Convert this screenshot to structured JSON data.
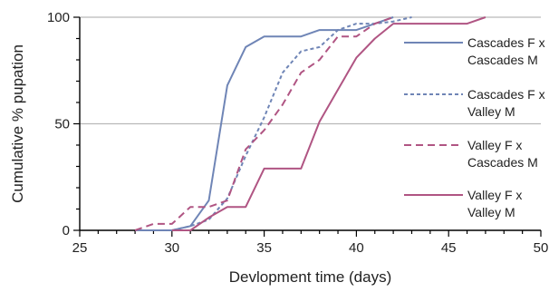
{
  "chart_data": {
    "type": "line",
    "xlabel": "Devlopment time (days)",
    "ylabel": "Cumulative % pupation",
    "xlim": [
      25,
      50
    ],
    "ylim": [
      0,
      100
    ],
    "xticks": [
      "25",
      "30",
      "35",
      "40",
      "45",
      "50"
    ],
    "yticks": [
      "0",
      "50",
      "100"
    ],
    "grid": "horizontal",
    "legend_position": "right",
    "series": [
      {
        "name_lines": [
          "Cascades F x",
          "Cascades M"
        ],
        "color": "#6f85b6",
        "dash": "solid",
        "x": [
          28,
          29,
          30,
          31,
          32,
          33,
          34,
          35,
          36,
          37,
          38,
          39,
          40,
          41,
          42
        ],
        "y": [
          0,
          0,
          0,
          2,
          14,
          68,
          86,
          91,
          91,
          91,
          94,
          94,
          94,
          97,
          100
        ]
      },
      {
        "name_lines": [
          "Cascades F x",
          "Valley M"
        ],
        "color": "#6f85b6",
        "dash": "dashed",
        "x": [
          29,
          30,
          31,
          32,
          33,
          34,
          35,
          36,
          37,
          38,
          39,
          40,
          41,
          42,
          43
        ],
        "y": [
          0,
          0,
          2,
          5,
          15,
          35,
          53,
          74,
          84,
          86,
          94,
          97,
          97,
          98,
          100
        ]
      },
      {
        "name_lines": [
          "Valley F x",
          "Cascades M"
        ],
        "color": "#b05583",
        "dash": "dashed",
        "x": [
          28,
          29,
          30,
          31,
          32,
          33,
          34,
          35,
          36,
          37,
          38,
          39,
          40,
          41,
          42
        ],
        "y": [
          0,
          3,
          3,
          11,
          11,
          14,
          38,
          47,
          59,
          74,
          80,
          91,
          91,
          97,
          100
        ]
      },
      {
        "name_lines": [
          "Valley F x",
          "Valley M"
        ],
        "color": "#b05583",
        "dash": "solid",
        "x": [
          30,
          31,
          32,
          33,
          34,
          35,
          36,
          37,
          38,
          39,
          40,
          41,
          42,
          43,
          44,
          45,
          46,
          47
        ],
        "y": [
          0,
          0,
          6,
          11,
          11,
          29,
          29,
          29,
          51,
          66,
          81,
          90,
          97,
          97,
          97,
          97,
          97,
          100
        ]
      }
    ]
  }
}
